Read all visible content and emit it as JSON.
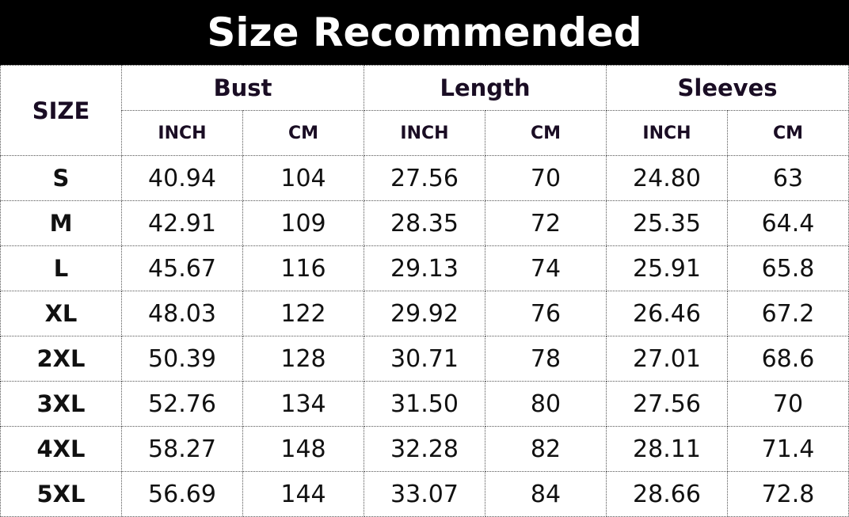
{
  "title": "Size Recommended",
  "size_header": "SIZE",
  "groups": [
    "Bust",
    "Length",
    "Sleeves"
  ],
  "units": [
    "INCH",
    "CM",
    "INCH",
    "CM",
    "INCH",
    "CM"
  ],
  "rows": [
    {
      "size": "S",
      "values": [
        "40.94",
        "104",
        "27.56",
        "70",
        "24.80",
        "63"
      ]
    },
    {
      "size": "M",
      "values": [
        "42.91",
        "109",
        "28.35",
        "72",
        "25.35",
        "64.4"
      ]
    },
    {
      "size": "L",
      "values": [
        "45.67",
        "116",
        "29.13",
        "74",
        "25.91",
        "65.8"
      ]
    },
    {
      "size": "XL",
      "values": [
        "48.03",
        "122",
        "29.92",
        "76",
        "26.46",
        "67.2"
      ]
    },
    {
      "size": "2XL",
      "values": [
        "50.39",
        "128",
        "30.71",
        "78",
        "27.01",
        "68.6"
      ]
    },
    {
      "size": "3XL",
      "values": [
        "52.76",
        "134",
        "31.50",
        "80",
        "27.56",
        "70"
      ]
    },
    {
      "size": "4XL",
      "values": [
        "58.27",
        "148",
        "32.28",
        "82",
        "28.11",
        "71.4"
      ]
    },
    {
      "size": "5XL",
      "values": [
        "56.69",
        "144",
        "33.07",
        "84",
        "28.66",
        "72.8"
      ]
    }
  ]
}
